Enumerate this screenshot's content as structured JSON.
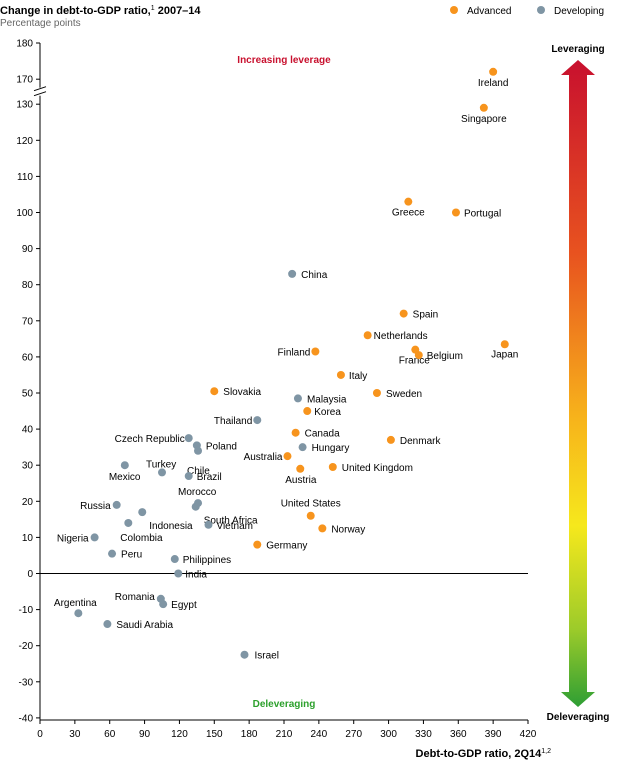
{
  "chart_data": {
    "type": "scatter",
    "title": "Change in debt-to-GDP ratio,",
    "title_sup": "1",
    "title_period": " 2007–14",
    "subtitle": "Percentage points",
    "xlabel": "Debt-to-GDP ratio, 2Q14",
    "xlabel_sup": "1,2",
    "x_ticks": [
      0,
      30,
      60,
      90,
      120,
      150,
      180,
      210,
      240,
      270,
      300,
      330,
      360,
      390,
      420
    ],
    "xlim": [
      0,
      420
    ],
    "y_ticks": [
      "-40",
      "-30",
      "-20",
      "-10",
      "0",
      "10",
      "20",
      "30",
      "40",
      "50",
      "60",
      "70",
      "80",
      "90",
      "100",
      "110",
      "120",
      "130",
      "170",
      "180"
    ],
    "ylim": [
      -40,
      180
    ],
    "y_axis_break": "between 130 and 170",
    "grid": false,
    "legend_position": "top-right",
    "annotations": {
      "top": "Increasing leverage",
      "bottom": "Deleveraging"
    },
    "colors": {
      "advanced": "#F7941D",
      "developing": "#7F95A4",
      "leverage_top": "#D7191C",
      "deleverage_bottom": "#2CA02C"
    },
    "gradient_bar": {
      "top_label": "Leveraging",
      "bottom_label": "Deleveraging"
    },
    "series": [
      {
        "name": "Advanced",
        "color": "#F7941D",
        "points": [
          {
            "label": "Ireland",
            "x": 390,
            "y": 172
          },
          {
            "label": "Singapore",
            "x": 382,
            "y": 129
          },
          {
            "label": "Greece",
            "x": 317,
            "y": 103
          },
          {
            "label": "Portugal",
            "x": 358,
            "y": 100
          },
          {
            "label": "Spain",
            "x": 313,
            "y": 72
          },
          {
            "label": "Netherlands",
            "x": 282,
            "y": 66
          },
          {
            "label": "Japan",
            "x": 400,
            "y": 63.5
          },
          {
            "label": "Finland",
            "x": 237,
            "y": 61.5
          },
          {
            "label": "France",
            "x": 323,
            "y": 62
          },
          {
            "label": "Belgium",
            "x": 326,
            "y": 60.5
          },
          {
            "label": "Italy",
            "x": 259,
            "y": 55
          },
          {
            "label": "Sweden",
            "x": 290,
            "y": 50
          },
          {
            "label": "Slovakia",
            "x": 150,
            "y": 50.5
          },
          {
            "label": "Korea",
            "x": 230,
            "y": 45
          },
          {
            "label": "Canada",
            "x": 220,
            "y": 39
          },
          {
            "label": "Denmark",
            "x": 302,
            "y": 37
          },
          {
            "label": "Australia",
            "x": 213,
            "y": 32.5
          },
          {
            "label": "Austria",
            "x": 224,
            "y": 29
          },
          {
            "label": "United Kingdom",
            "x": 252,
            "y": 29.5
          },
          {
            "label": "United States",
            "x": 233,
            "y": 16
          },
          {
            "label": "Norway",
            "x": 243,
            "y": 12.5
          },
          {
            "label": "Germany",
            "x": 187,
            "y": 8
          }
        ]
      },
      {
        "name": "Developing",
        "color": "#7F95A4",
        "points": [
          {
            "label": "China",
            "x": 217,
            "y": 83
          },
          {
            "label": "Malaysia",
            "x": 222,
            "y": 48.5
          },
          {
            "label": "Thailand",
            "x": 187,
            "y": 42.5
          },
          {
            "label": "Czech Republic",
            "x": 128,
            "y": 37.5
          },
          {
            "label": "Poland",
            "x": 135,
            "y": 35.5
          },
          {
            "label": "Hungary",
            "x": 226,
            "y": 35
          },
          {
            "label": "Chile",
            "x": 136,
            "y": 34
          },
          {
            "label": "Mexico",
            "x": 73,
            "y": 30
          },
          {
            "label": "Turkey",
            "x": 105,
            "y": 28
          },
          {
            "label": "Brazil",
            "x": 128,
            "y": 27
          },
          {
            "label": "Morocco",
            "x": 136,
            "y": 19.5
          },
          {
            "label": "Russia",
            "x": 66,
            "y": 19
          },
          {
            "label": "South Africa",
            "x": 134,
            "y": 18.5
          },
          {
            "label": "Indonesia",
            "x": 88,
            "y": 17
          },
          {
            "label": "Colombia",
            "x": 76,
            "y": 14
          },
          {
            "label": "Vietnam",
            "x": 145,
            "y": 13.5
          },
          {
            "label": "Nigeria",
            "x": 47,
            "y": 10
          },
          {
            "label": "Peru",
            "x": 62,
            "y": 5.5
          },
          {
            "label": "Philippines",
            "x": 116,
            "y": 4
          },
          {
            "label": "India",
            "x": 119,
            "y": 0
          },
          {
            "label": "Romania",
            "x": 104,
            "y": -7
          },
          {
            "label": "Egypt",
            "x": 106,
            "y": -8.5
          },
          {
            "label": "Argentina",
            "x": 33,
            "y": -11
          },
          {
            "label": "Saudi Arabia",
            "x": 58,
            "y": -14
          },
          {
            "label": "Israel",
            "x": 176,
            "y": -22.5
          }
        ]
      }
    ]
  }
}
